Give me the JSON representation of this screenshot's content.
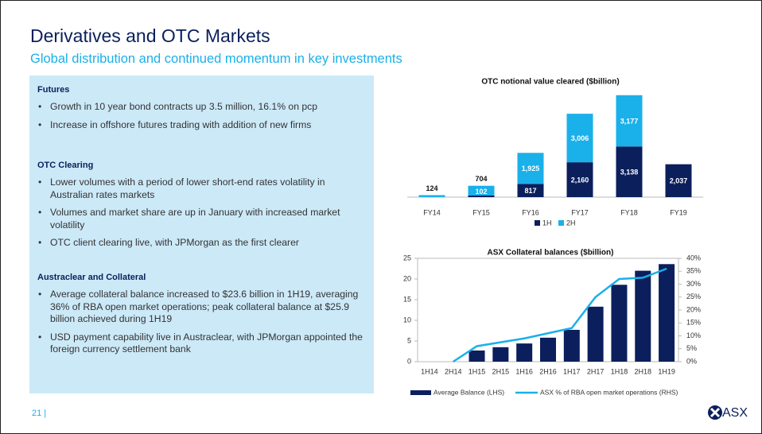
{
  "header": {
    "title": "Derivatives and OTC Markets",
    "subtitle": "Global distribution and continued momentum in key investments"
  },
  "panel": {
    "sections": [
      {
        "heading": "Futures",
        "bullets": [
          "Growth in 10 year bond contracts up 3.5 million, 16.1% on pcp",
          "Increase in offshore futures trading with addition of new firms"
        ]
      },
      {
        "heading": "OTC Clearing",
        "bullets": [
          "Lower volumes with a period of lower short-end rates volatility in Australian rates markets",
          "Volumes and market share are up in January with increased market volatility",
          "OTC client clearing live, with JPMorgan as the first clearer"
        ]
      },
      {
        "heading": "Austraclear and Collateral",
        "bullets": [
          "Average collateral balance increased to $23.6 billion in 1H19, averaging 36% of RBA open market operations; peak collateral balance at $25.9 billion achieved during 1H19",
          "USD payment capability live in Austraclear, with JPMorgan appointed the foreign currency settlement bank"
        ]
      }
    ]
  },
  "footer": {
    "page": "21 |",
    "logo": "ASX"
  },
  "chart_data": [
    {
      "type": "stacked_bar",
      "title": "OTC notional value cleared ($billion)",
      "categories": [
        "FY14",
        "FY15",
        "FY16",
        "FY17",
        "FY18",
        "FY19"
      ],
      "series": [
        {
          "name": "1H",
          "color": "#0b1f5c",
          "values": [
            null,
            102,
            817,
            2160,
            3138,
            2037
          ],
          "value_labels": [
            null,
            "102",
            "817",
            "2,160",
            "3,138",
            "2,037"
          ]
        },
        {
          "name": "2H",
          "color": "#1ab0ea",
          "values": [
            124,
            602,
            1925,
            3006,
            3177,
            null
          ],
          "value_labels": [
            null,
            null,
            "1,925",
            "3,006",
            "3,177",
            null
          ]
        }
      ],
      "totals": [
        124,
        704,
        null,
        null,
        null,
        null
      ],
      "ylim": [
        0,
        6500
      ]
    },
    {
      "type": "bar_line",
      "title": "ASX Collateral balances ($billion)",
      "categories": [
        "1H14",
        "2H14",
        "1H15",
        "2H15",
        "1H16",
        "2H16",
        "1H17",
        "2H17",
        "1H18",
        "2H18",
        "1H19"
      ],
      "series": [
        {
          "name": "Average Balance (LHS)",
          "color": "#0b1f5c",
          "values": [
            0,
            0,
            2.7,
            3.5,
            4.4,
            5.8,
            7.7,
            13.3,
            18.6,
            22,
            23.6
          ]
        },
        {
          "name": "ASX % of RBA open market operations (RHS)",
          "color": "#1ab0ea",
          "axis": "y2",
          "values": [
            null,
            0,
            6,
            7.5,
            9,
            11,
            13,
            25,
            32,
            32.5,
            36
          ]
        }
      ],
      "ylim": [
        0,
        25
      ],
      "yticks": [
        0,
        5,
        10,
        15,
        20,
        25
      ],
      "y2lim": [
        0,
        40
      ],
      "y2ticks": [
        {
          "value": 0,
          "label": "0%"
        },
        {
          "value": 5,
          "label": "5%"
        },
        {
          "value": 10,
          "label": "10%"
        },
        {
          "value": 15,
          "label": "15%"
        },
        {
          "value": 20,
          "label": "20%"
        },
        {
          "value": 25,
          "label": "25%"
        },
        {
          "value": 30,
          "label": "30%"
        },
        {
          "value": 35,
          "label": "35%"
        },
        {
          "value": 40,
          "label": "40%"
        }
      ]
    }
  ]
}
